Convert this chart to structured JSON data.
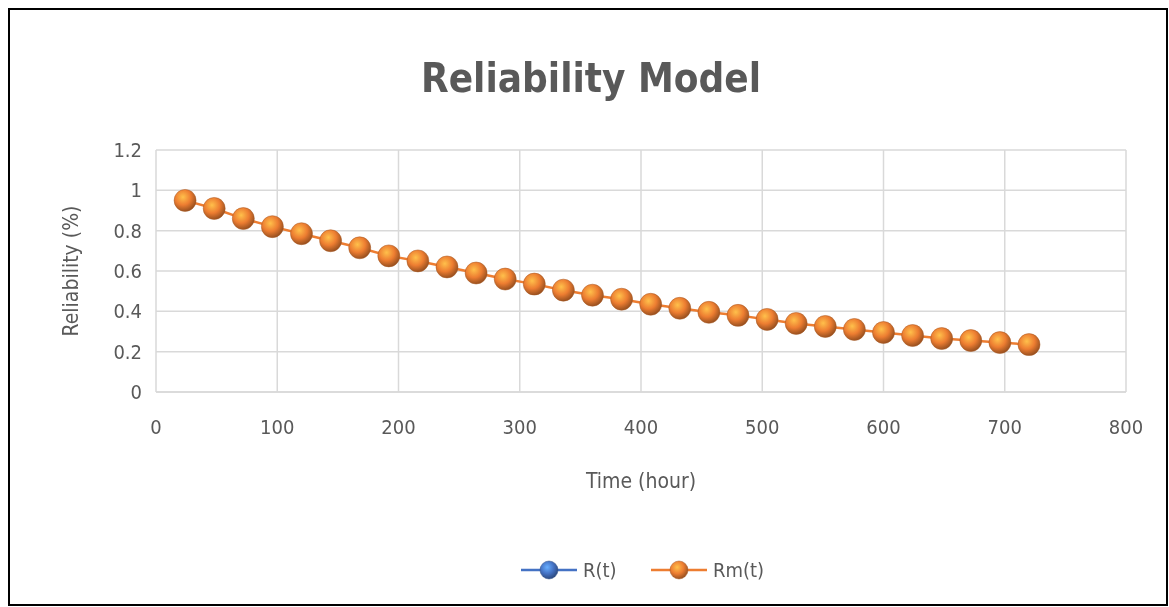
{
  "chart_data": {
    "type": "line",
    "title": "Reliability Model",
    "xlabel": "Time (hour)",
    "ylabel": "Reliability (%)",
    "x": [
      24,
      48,
      72,
      96,
      120,
      144,
      168,
      192,
      216,
      240,
      264,
      288,
      312,
      336,
      360,
      384,
      408,
      432,
      456,
      480,
      504,
      528,
      552,
      576,
      600,
      624,
      648,
      672,
      696,
      720
    ],
    "series": [
      {
        "name": "R(t)",
        "color": "#4472c4",
        "values": [
          null,
          null,
          null,
          null,
          null,
          null,
          null,
          null,
          null,
          null,
          null,
          null,
          null,
          null,
          null,
          null,
          null,
          null,
          null,
          null,
          null,
          null,
          null,
          null,
          null,
          null,
          null,
          null,
          null,
          null
        ]
      },
      {
        "name": "Rm(t)",
        "color": "#ed7d31",
        "values": [
          0.95,
          0.91,
          0.86,
          0.82,
          0.785,
          0.75,
          0.715,
          0.675,
          0.65,
          0.62,
          0.59,
          0.56,
          0.535,
          0.505,
          0.48,
          0.46,
          0.435,
          0.415,
          0.395,
          0.38,
          0.36,
          0.34,
          0.325,
          0.31,
          0.295,
          0.28,
          0.265,
          0.255,
          0.245,
          0.235
        ]
      }
    ],
    "xlim": [
      0,
      800
    ],
    "xticks": [
      0,
      100,
      200,
      300,
      400,
      500,
      600,
      700,
      800
    ],
    "ylim": [
      0,
      1.2
    ],
    "yticks": [
      0,
      {
        "value": 0.2,
        "label": "0.2"
      },
      {
        "value": 0.4,
        "label": "0.4"
      },
      {
        "value": 0.6,
        "label": "0.6"
      },
      {
        "value": 0.8,
        "label": "0.8"
      },
      1,
      {
        "value": 1.2,
        "label": "1.2"
      }
    ],
    "grid": true,
    "legend": "bottom",
    "marker": "circle",
    "line_style": "solid"
  }
}
